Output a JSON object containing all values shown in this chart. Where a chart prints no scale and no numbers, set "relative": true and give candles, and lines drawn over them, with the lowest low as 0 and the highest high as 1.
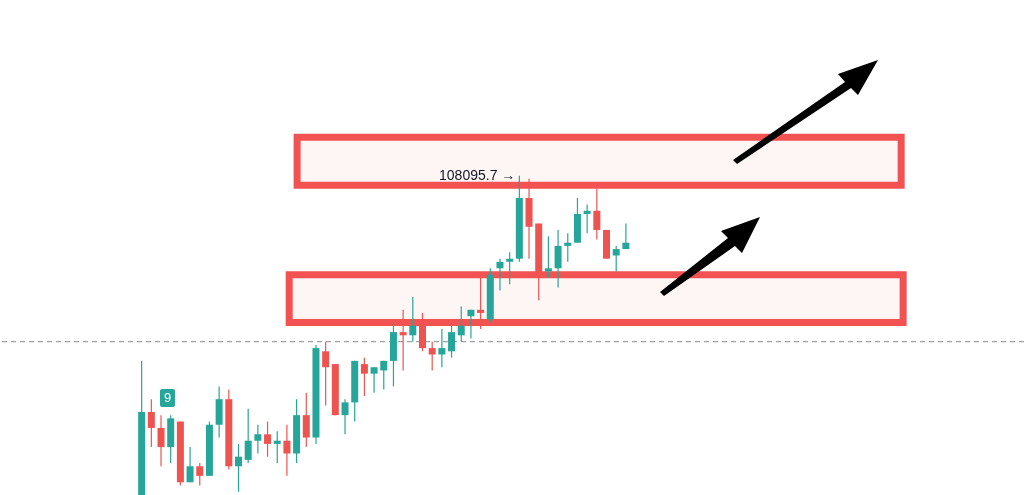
{
  "chart_data": {
    "type": "candlestick",
    "relative": true,
    "categories": [
      null,
      null,
      null,
      null,
      null,
      null,
      null,
      null,
      null,
      null,
      null,
      null,
      null,
      null,
      null,
      null,
      null,
      null,
      null,
      null,
      null,
      null,
      null,
      null,
      null,
      null,
      null,
      null,
      null,
      null,
      null,
      null,
      null,
      null,
      null,
      null,
      null,
      null,
      null,
      null,
      null,
      null,
      null,
      null,
      null,
      null,
      null,
      null,
      null,
      null,
      null
    ],
    "ohlc": [
      [
        0,
        0.42,
        0,
        0.26
      ],
      [
        0.26,
        0.3,
        0.15,
        0.21
      ],
      [
        0.21,
        0.25,
        0.09,
        0.15
      ],
      [
        0.15,
        0.25,
        0.1,
        0.24
      ],
      [
        0.23,
        0.23,
        0.03,
        0.04
      ],
      [
        0.04,
        0.15,
        0.04,
        0.09
      ],
      [
        0.09,
        0.1,
        0.03,
        0.06
      ],
      [
        0.06,
        0.23,
        0.06,
        0.22
      ],
      [
        0.22,
        0.34,
        0.18,
        0.3
      ],
      [
        0.3,
        0.33,
        0.08,
        0.09
      ],
      [
        0.09,
        0.16,
        0.01,
        0.12
      ],
      [
        0.11,
        0.27,
        0.1,
        0.17
      ],
      [
        0.17,
        0.22,
        0.13,
        0.19
      ],
      [
        0.19,
        0.23,
        0.12,
        0.16
      ],
      [
        0.16,
        0.2,
        0.1,
        0.17
      ],
      [
        0.17,
        0.22,
        0.06,
        0.13
      ],
      [
        0.13,
        0.3,
        0.1,
        0.25
      ],
      [
        0.25,
        0.32,
        0.15,
        0.18
      ],
      [
        0.18,
        0.47,
        0.16,
        0.46
      ],
      [
        0.45,
        0.48,
        0.28,
        0.4
      ],
      [
        0.41,
        0.41,
        0.25,
        0.25
      ],
      [
        0.25,
        0.3,
        0.19,
        0.29
      ],
      [
        0.29,
        0.42,
        0.23,
        0.42
      ],
      [
        0.41,
        0.43,
        0.31,
        0.38
      ],
      [
        0.38,
        0.4,
        0.32,
        0.4
      ],
      [
        0.39,
        0.42,
        0.33,
        0.42
      ],
      [
        0.42,
        0.54,
        0.34,
        0.51
      ],
      [
        0.51,
        0.58,
        0.39,
        0.5
      ],
      [
        0.5,
        0.62,
        0.48,
        0.53
      ],
      [
        0.53,
        0.57,
        0.45,
        0.46
      ],
      [
        0.46,
        0.48,
        0.39,
        0.44
      ],
      [
        0.44,
        0.52,
        0.4,
        0.46
      ],
      [
        0.45,
        0.53,
        0.43,
        0.51
      ],
      [
        0.5,
        0.59,
        0.48,
        0.53
      ],
      [
        0.56,
        0.58,
        0.49,
        0.58
      ],
      [
        0.58,
        0.68,
        0.52,
        0.57
      ],
      [
        0.55,
        0.71,
        0.54,
        0.69
      ],
      [
        0.71,
        0.74,
        0.64,
        0.73
      ],
      [
        0.73,
        0.76,
        0.66,
        0.74
      ],
      [
        0.74,
        1,
        0.73,
        0.93
      ],
      [
        0.93,
        0.99,
        0.74,
        0.84
      ],
      [
        0.85,
        0.85,
        0.61,
        0.69
      ],
      [
        0.7,
        0.81,
        0.68,
        0.71
      ],
      [
        0.71,
        0.83,
        0.65,
        0.78
      ],
      [
        0.78,
        0.82,
        0.73,
        0.79
      ],
      [
        0.79,
        0.93,
        0.79,
        0.88
      ],
      [
        0.88,
        0.91,
        0.82,
        0.89
      ],
      [
        0.89,
        0.96,
        0.8,
        0.83
      ],
      [
        0.83,
        0.83,
        0.74,
        0.74
      ],
      [
        0.75,
        0.78,
        0.7,
        0.77
      ],
      [
        0.77,
        0.85,
        0.77,
        0.79
      ]
    ],
    "colors": [
      "#26a69a",
      "#ef5350",
      "#ef5350",
      "#26a69a",
      "#ef5350",
      "#26a69a",
      "#ef5350",
      "#26a69a",
      "#26a69a",
      "#ef5350",
      "#26a69a",
      "#26a69a",
      "#26a69a",
      "#ef5350",
      "#26a69a",
      "#ef5350",
      "#26a69a",
      "#ef5350",
      "#26a69a",
      "#ef5350",
      "#ef5350",
      "#26a69a",
      "#26a69a",
      "#ef5350",
      "#26a69a",
      "#26a69a",
      "#26a69a",
      "#ef5350",
      "#26a69a",
      "#ef5350",
      "#ef5350",
      "#26a69a",
      "#26a69a",
      "#26a69a",
      "#26a69a",
      "#ef5350",
      "#26a69a",
      "#26a69a",
      "#26a69a",
      "#26a69a",
      "#ef5350",
      "#ef5350",
      "#26a69a",
      "#26a69a",
      "#26a69a",
      "#26a69a",
      "#26a69a",
      "#ef5350",
      "#ef5350",
      "#26a69a",
      "#26a69a"
    ],
    "ref_lines": [
      {
        "axis": "y",
        "value": 0.48,
        "color": "#888888",
        "line_style": "dashed"
      }
    ],
    "bands": [
      {
        "axis": "y",
        "from": 0.97,
        "to": 1.12,
        "color": "#f25252"
      },
      {
        "axis": "y",
        "from": 0.54,
        "to": 0.69,
        "color": "#f25252"
      }
    ],
    "annotations": [
      "108095.7 →",
      "9"
    ]
  }
}
